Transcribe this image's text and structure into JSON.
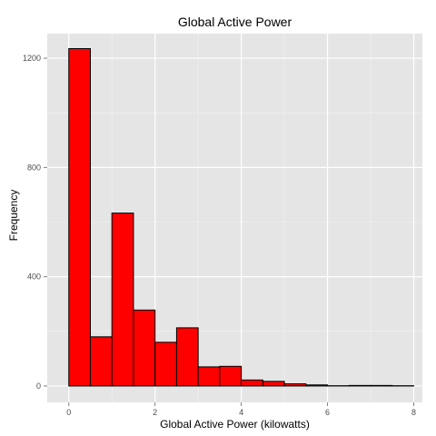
{
  "chart_data": {
    "type": "bar",
    "title": "Global Active Power",
    "xlabel": "Global Active Power (kilowatts)",
    "ylabel": "Frequency",
    "xlim": [
      -0.5,
      8.2
    ],
    "ylim": [
      -60,
      1290
    ],
    "x_ticks": [
      0,
      2,
      4,
      6,
      8
    ],
    "y_ticks": [
      0,
      400,
      800,
      1200
    ],
    "grid": true,
    "legend": "none",
    "colors": {
      "fill": "#ff0000",
      "stroke": "#000000",
      "panel": "#e5e5e5",
      "grid": "#ffffff"
    },
    "bin_width": 0.5,
    "bins_left": [
      -0.5,
      0,
      0.5,
      1,
      1.5,
      2,
      2.5,
      3,
      3.5,
      4,
      4.5,
      5,
      5.5,
      6,
      6.5,
      7,
      7.5
    ],
    "values": [
      0,
      1235,
      180,
      633,
      278,
      160,
      213,
      70,
      72,
      22,
      17,
      8,
      4,
      1,
      2,
      2,
      1
    ]
  }
}
